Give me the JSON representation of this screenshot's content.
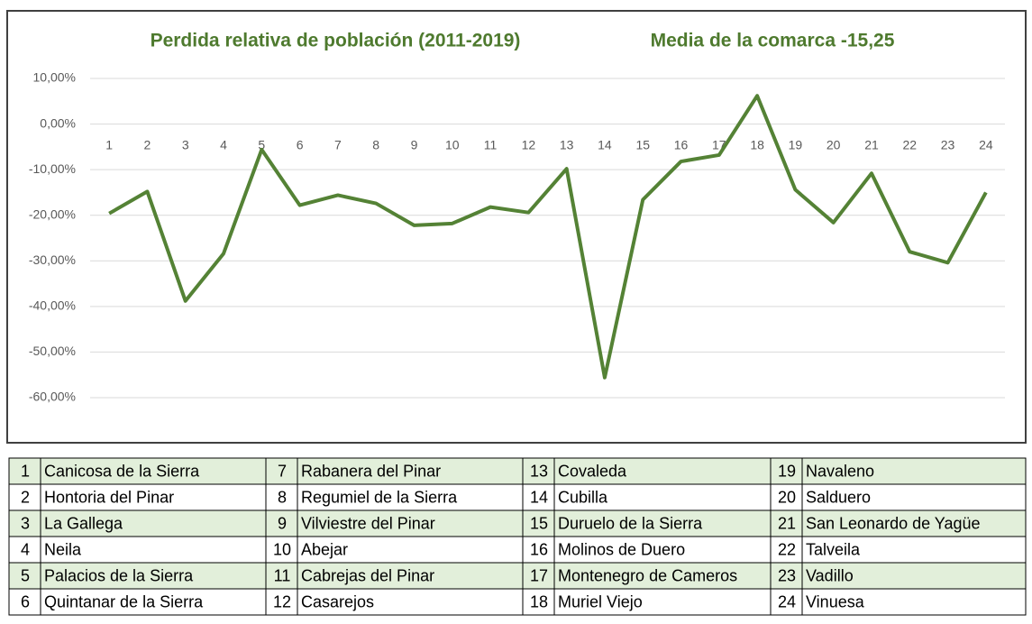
{
  "chart_data": {
    "type": "line",
    "title": "Perdida relativa de población (2011-2019)",
    "subtitle": "Media de la comarca -15,25",
    "categories": [
      "1",
      "2",
      "3",
      "4",
      "5",
      "6",
      "7",
      "8",
      "9",
      "10",
      "11",
      "12",
      "13",
      "14",
      "15",
      "16",
      "17",
      "18",
      "19",
      "20",
      "21",
      "22",
      "23",
      "24"
    ],
    "values": [
      -19.6,
      -14.8,
      -38.8,
      -28.4,
      -5.6,
      -17.8,
      -15.6,
      -17.4,
      -22.2,
      -21.8,
      -18.2,
      -19.4,
      -9.8,
      -55.6,
      -16.6,
      -8.2,
      -6.8,
      6.2,
      -14.4,
      -21.6,
      -10.8,
      -28,
      -30.4,
      -15
    ],
    "color": "#548235",
    "ylim": [
      -60,
      10
    ],
    "yticks": [
      {
        "value": 10,
        "label": "10,00%"
      },
      {
        "value": 0,
        "label": "0,00%"
      },
      {
        "value": -10,
        "label": "-10,00%"
      },
      {
        "value": -20,
        "label": "-20,00%"
      },
      {
        "value": -30,
        "label": "-30,00%"
      },
      {
        "value": -40,
        "label": "-40,00%"
      },
      {
        "value": -50,
        "label": "-50,00%"
      },
      {
        "value": -60,
        "label": "-60,00%"
      }
    ],
    "grid": true
  },
  "table": {
    "rows": [
      [
        1,
        "Canicosa de la Sierra",
        7,
        "Rabanera del Pinar",
        13,
        "Covaleda",
        19,
        "Navaleno"
      ],
      [
        2,
        "Hontoria del Pinar",
        8,
        "Regumiel de la Sierra",
        14,
        "Cubilla",
        20,
        "Salduero"
      ],
      [
        3,
        "La Gallega",
        9,
        "Vilviestre del Pinar",
        15,
        "Duruelo de la Sierra",
        21,
        "San Leonardo de Yagüe"
      ],
      [
        4,
        "Neila",
        10,
        "Abejar",
        16,
        "Molinos de Duero",
        22,
        "Talveila"
      ],
      [
        5,
        "Palacios de la Sierra",
        11,
        "Cabrejas del Pinar",
        17,
        "Montenegro de Cameros",
        23,
        "Vadillo"
      ],
      [
        6,
        "Quintanar de la Sierra",
        12,
        "Casarejos",
        18,
        "Muriel Viejo",
        24,
        "Vinuesa"
      ]
    ]
  }
}
